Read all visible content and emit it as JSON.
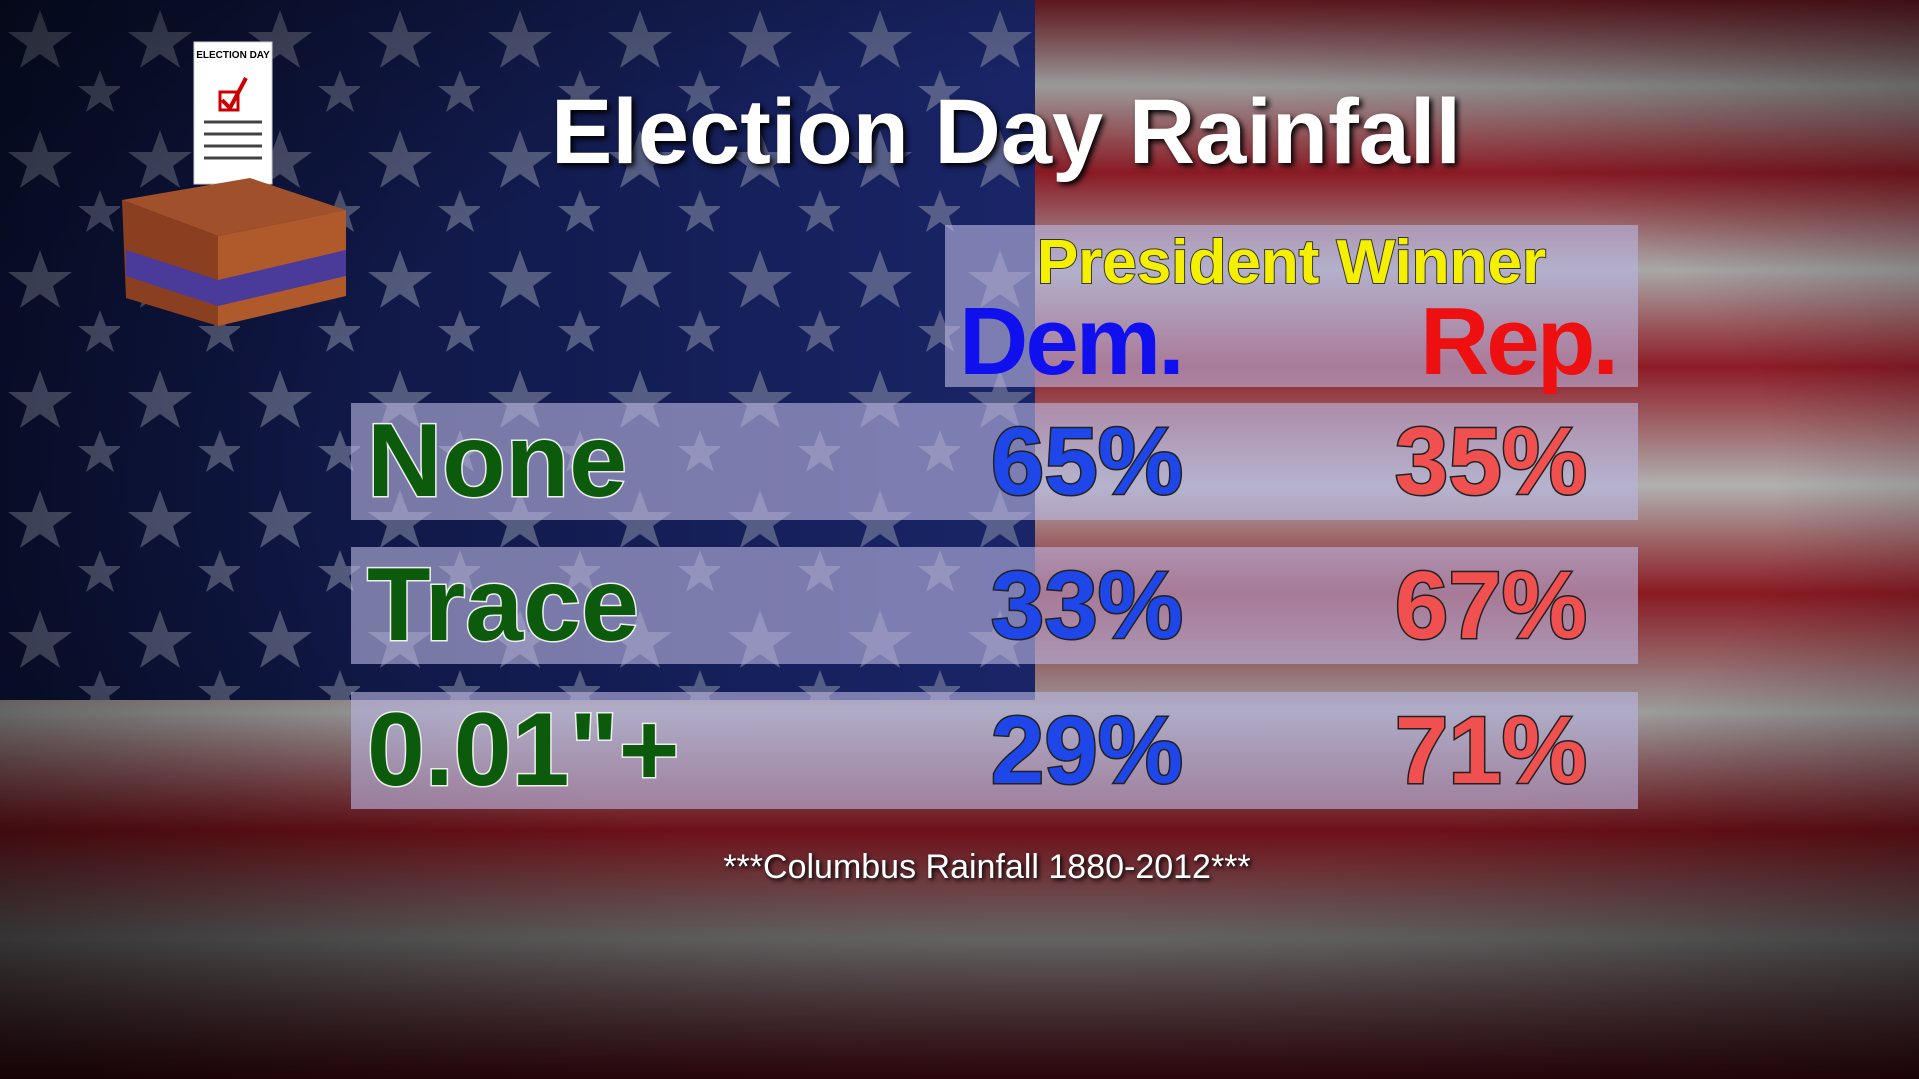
{
  "header": {
    "title": "Election Day Rainfall"
  },
  "icon": {
    "label": "ELECTION DAY"
  },
  "table": {
    "group_header": "President Winner",
    "columns": [
      "Dem.",
      "Rep."
    ],
    "rows": [
      [
        "None",
        "65%",
        "35%"
      ],
      [
        "Trace",
        "33%",
        "67%"
      ],
      [
        "0.01\"+",
        "29%",
        "71%"
      ]
    ]
  },
  "footnote": "***Columbus Rainfall 1880-2012***"
}
